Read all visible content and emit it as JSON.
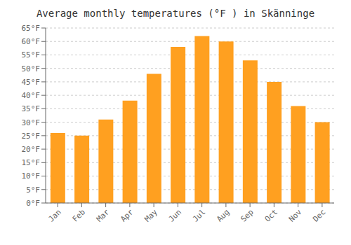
{
  "chart_data": {
    "type": "bar",
    "title": "Average monthly temperatures (°F ) in Skänninge",
    "categories": [
      "Jan",
      "Feb",
      "Mar",
      "Apr",
      "May",
      "Jun",
      "Jul",
      "Aug",
      "Sep",
      "Oct",
      "Nov",
      "Dec"
    ],
    "values": [
      26,
      25,
      31,
      38,
      48,
      58,
      62,
      60,
      53,
      45,
      36,
      30
    ],
    "color": "#FFA020",
    "ylim": [
      0,
      65
    ],
    "yticks": [
      {
        "value": 0,
        "label": "0°F"
      },
      {
        "value": 5,
        "label": "5°F"
      },
      {
        "value": 10,
        "label": "10°F"
      },
      {
        "value": 15,
        "label": "15°F"
      },
      {
        "value": 20,
        "label": "20°F"
      },
      {
        "value": 25,
        "label": "25°F"
      },
      {
        "value": 30,
        "label": "30°F"
      },
      {
        "value": 35,
        "label": "35°F"
      },
      {
        "value": 40,
        "label": "40°F"
      },
      {
        "value": 45,
        "label": "45°F"
      },
      {
        "value": 50,
        "label": "50°F"
      },
      {
        "value": 55,
        "label": "55°F"
      },
      {
        "value": 60,
        "label": "60°F"
      },
      {
        "value": 65,
        "label": "65°F"
      }
    ],
    "grid": true
  }
}
